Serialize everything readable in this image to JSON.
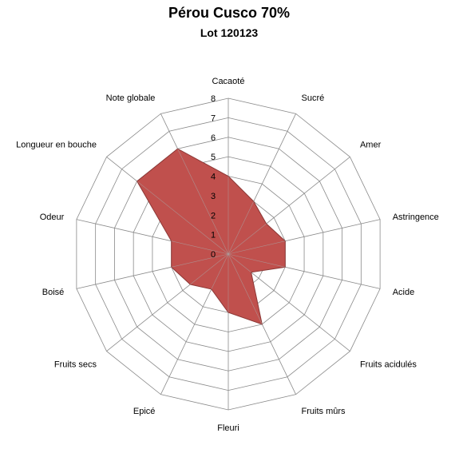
{
  "chart_data": {
    "type": "radar",
    "title": "Pérou Cusco 70%",
    "subtitle": "Lot 120123",
    "categories": [
      "Cacaoté",
      "Sucré",
      "Amer",
      "Astringence",
      "Acide",
      "Fruits acidulés",
      "Fruits mûrs",
      "Fleuri",
      "Epicé",
      "Fruits secs",
      "Boisé",
      "Odeur",
      "Longueur en bouche",
      "Note globale"
    ],
    "values": [
      4,
      3,
      2.5,
      3,
      3,
      1.5,
      4,
      3,
      2,
      2.5,
      3,
      3,
      6,
      6
    ],
    "rlim": [
      0,
      8
    ],
    "ticks": [
      "0",
      "1",
      "2",
      "3",
      "4",
      "5",
      "6",
      "7",
      "8"
    ],
    "grid": true,
    "colors": {
      "fill": "#c0504d",
      "stroke": "#8c3836",
      "grid": "#8a8a8a"
    }
  }
}
